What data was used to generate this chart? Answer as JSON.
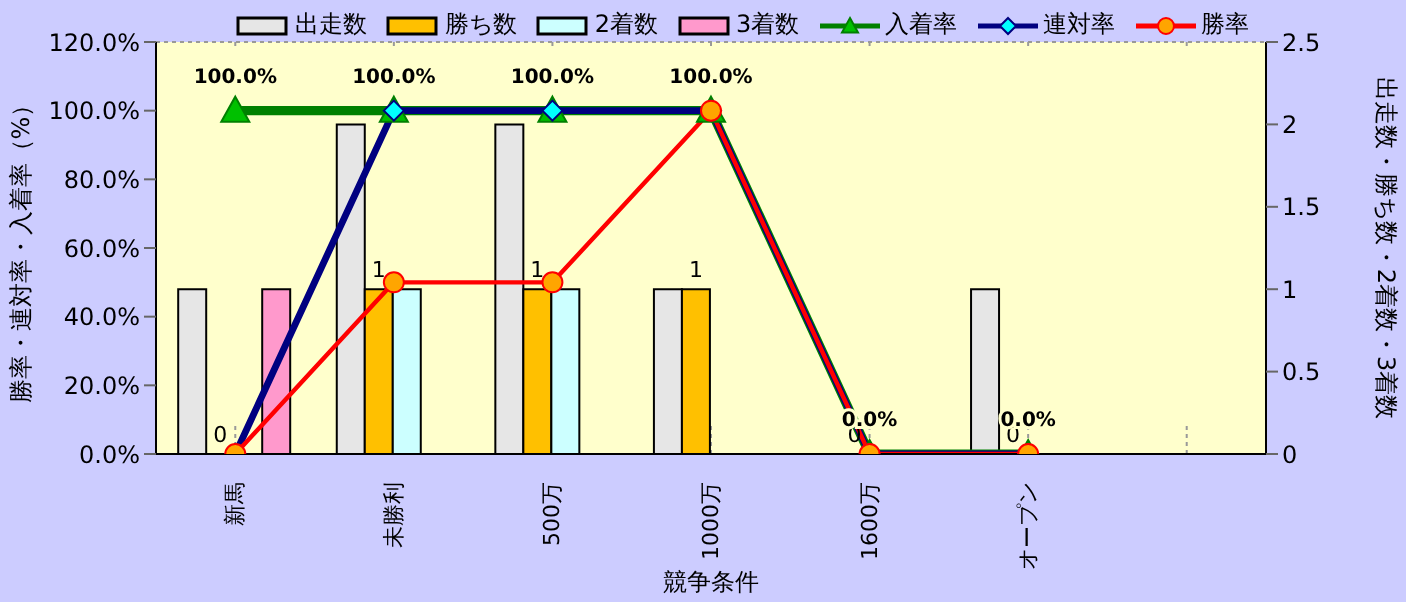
{
  "chart_data": {
    "type": "bar",
    "xlabel": "競争条件",
    "ylabel": "勝率・連対率・入着率（%）",
    "y2label": "出走数・勝ち数・2着数・3着数",
    "categories": [
      "新馬",
      "未勝利",
      "500万",
      "1000万",
      "1600万",
      "オープン",
      null
    ],
    "series": [
      {
        "name": "出走数",
        "axis": "y2",
        "color": "#e6e6e6",
        "values": [
          1,
          2,
          2,
          1,
          0,
          1,
          null
        ]
      },
      {
        "name": "勝ち数",
        "axis": "y2",
        "color": "#ffc000",
        "values": [
          0,
          1,
          1,
          1,
          0,
          0,
          null
        ],
        "value_labels": [
          "0",
          "1",
          "1",
          "1",
          "0",
          "0",
          null
        ]
      },
      {
        "name": "2着数",
        "axis": "y2",
        "color": "#ccffff",
        "values": [
          0,
          1,
          1,
          0,
          0,
          0,
          null
        ]
      },
      {
        "name": "3着数",
        "axis": "y2",
        "color": "#ff99cc",
        "values": [
          1,
          0,
          0,
          0,
          0,
          0,
          null
        ]
      },
      {
        "name": "入着率",
        "type": "line",
        "axis": "y",
        "color": "#008000",
        "marker": "triangle",
        "values": [
          100,
          100,
          100,
          100,
          0,
          0,
          null
        ],
        "value_labels": [
          "100.0%",
          "100.0%",
          "100.0%",
          "100.0%",
          "0.0%",
          "0.0%",
          null
        ]
      },
      {
        "name": "連対率",
        "type": "line",
        "axis": "y",
        "color": "#000080",
        "marker": "diamond",
        "values": [
          0,
          100,
          100,
          100,
          0,
          0,
          null
        ]
      },
      {
        "name": "勝率",
        "type": "line",
        "axis": "y",
        "color": "#ff0000",
        "marker": "circle",
        "values": [
          0,
          50,
          50,
          100,
          0,
          0,
          null
        ]
      }
    ],
    "ylim": [
      0,
      120
    ],
    "yticks": [
      {
        "value": 0,
        "label": "0.0%"
      },
      {
        "value": 20,
        "label": "20.0%"
      },
      {
        "value": 40,
        "label": "40.0%"
      },
      {
        "value": 60,
        "label": "60.0%"
      },
      {
        "value": 80,
        "label": "80.0%"
      },
      {
        "value": 100,
        "label": "100.0%"
      },
      {
        "value": 120,
        "label": "120.0%"
      }
    ],
    "y2lim": [
      0,
      2.5
    ],
    "y2ticks": [
      0,
      0.5,
      1,
      1.5,
      2,
      2.5
    ],
    "grid": true,
    "legend": "top"
  }
}
